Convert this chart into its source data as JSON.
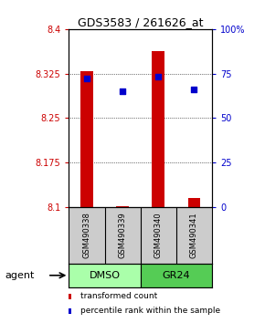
{
  "title": "GDS3583 / 261626_at",
  "samples": [
    "GSM490338",
    "GSM490339",
    "GSM490340",
    "GSM490341"
  ],
  "bar_values": [
    8.329,
    8.101,
    8.363,
    8.115
  ],
  "bar_base": 8.1,
  "percentile_values": [
    72,
    65,
    73,
    66
  ],
  "ylim_left": [
    8.1,
    8.4
  ],
  "ylim_right": [
    0,
    100
  ],
  "yticks_left": [
    8.1,
    8.175,
    8.25,
    8.325,
    8.4
  ],
  "yticks_right": [
    0,
    25,
    50,
    75,
    100
  ],
  "ytick_labels_left": [
    "8.1",
    "8.175",
    "8.25",
    "8.325",
    "8.4"
  ],
  "ytick_labels_right": [
    "0",
    "25",
    "50",
    "75",
    "100%"
  ],
  "bar_color": "#cc0000",
  "dot_color": "#0000cc",
  "agent_groups": [
    {
      "label": "DMSO",
      "samples": [
        0,
        1
      ],
      "color": "#aaffaa"
    },
    {
      "label": "GR24",
      "samples": [
        2,
        3
      ],
      "color": "#55cc55"
    }
  ],
  "legend_items": [
    {
      "color": "#cc0000",
      "label": "transformed count"
    },
    {
      "color": "#0000cc",
      "label": "percentile rank within the sample"
    }
  ],
  "sample_box_color": "#cccccc",
  "bar_width": 0.35,
  "agent_label": "agent",
  "background_color": "#ffffff",
  "grid_yticks": [
    8.175,
    8.25,
    8.325
  ]
}
